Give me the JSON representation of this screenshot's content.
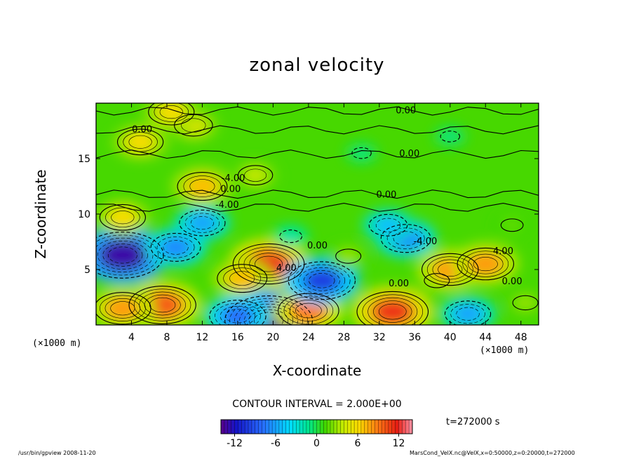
{
  "chart_data": {
    "type": "heatmap",
    "title": "zonal velocity",
    "xlabel": "X-coordinate",
    "ylabel": "Z-coordinate",
    "x_unit": "(×1000 m)",
    "y_unit": "(×1000 m)",
    "xlim": [
      0,
      50
    ],
    "ylim": [
      0,
      20
    ],
    "x_ticks": [
      4,
      8,
      12,
      16,
      20,
      24,
      28,
      32,
      36,
      40,
      44,
      48
    ],
    "y_ticks": [
      5,
      10,
      15
    ],
    "contour_interval_text": "CONTOUR INTERVAL = 2.000E+00",
    "contour_labels": [
      {
        "text": "0.00",
        "x": 35.0,
        "z": 19.4
      },
      {
        "text": "0.00",
        "x": 5.2,
        "z": 17.7
      },
      {
        "text": "0.00",
        "x": 35.4,
        "z": 15.5
      },
      {
        "text": "-4.00",
        "x": 15.5,
        "z": 13.3
      },
      {
        "text": "0.00",
        "x": 15.2,
        "z": 12.3
      },
      {
        "text": "0.00",
        "x": 32.8,
        "z": 11.8
      },
      {
        "text": "-4.00",
        "x": 14.8,
        "z": 10.9
      },
      {
        "text": "-4.00",
        "x": 37.2,
        "z": 7.6
      },
      {
        "text": "0.00",
        "x": 25.0,
        "z": 7.2
      },
      {
        "text": "4.00",
        "x": 21.5,
        "z": 5.2
      },
      {
        "text": "0.00",
        "x": 34.2,
        "z": 3.8
      },
      {
        "text": "4.00",
        "x": 46.0,
        "z": 6.7
      },
      {
        "text": "0.00",
        "x": 47.0,
        "z": 4.0
      }
    ],
    "features": [
      {
        "x": 3.0,
        "z": 6.3,
        "value": -13
      },
      {
        "x": 9.0,
        "z": 7.0,
        "value": -7
      },
      {
        "x": 12.0,
        "z": 9.2,
        "value": -6
      },
      {
        "x": 19.5,
        "z": 5.5,
        "value": 11
      },
      {
        "x": 16.5,
        "z": 4.2,
        "value": 7
      },
      {
        "x": 7.5,
        "z": 1.8,
        "value": 10
      },
      {
        "x": 3.0,
        "z": 1.5,
        "value": 8
      },
      {
        "x": 19.5,
        "z": 0.4,
        "value": -14
      },
      {
        "x": 16.0,
        "z": 0.8,
        "value": -8
      },
      {
        "x": 24.0,
        "z": 1.3,
        "value": 9
      },
      {
        "x": 33.5,
        "z": 1.2,
        "value": 11
      },
      {
        "x": 42.0,
        "z": 1.0,
        "value": -6
      },
      {
        "x": 38.5,
        "z": 4.0,
        "value": 3
      },
      {
        "x": 40.0,
        "z": 5.0,
        "value": 8
      },
      {
        "x": 44.0,
        "z": 5.5,
        "value": 8
      },
      {
        "x": 25.5,
        "z": 4.0,
        "value": -10
      },
      {
        "x": 35.0,
        "z": 7.8,
        "value": -7
      },
      {
        "x": 33.0,
        "z": 9.0,
        "value": -5
      },
      {
        "x": 12.0,
        "z": 12.5,
        "value": 7
      },
      {
        "x": 18.0,
        "z": 13.5,
        "value": 4
      },
      {
        "x": 5.0,
        "z": 16.5,
        "value": 6
      },
      {
        "x": 11.0,
        "z": 18.0,
        "value": 5
      },
      {
        "x": 8.5,
        "z": 19.2,
        "value": 6
      },
      {
        "x": 3.0,
        "z": 9.7,
        "value": 6
      },
      {
        "x": 28.5,
        "z": 6.2,
        "value": 3
      },
      {
        "x": 22.0,
        "z": 8.0,
        "value": -2
      },
      {
        "x": 47.0,
        "z": 9.0,
        "value": 2
      },
      {
        "x": 30.0,
        "z": 15.5,
        "value": -1
      },
      {
        "x": 40.0,
        "z": 17.0,
        "value": -1
      },
      {
        "x": 48.5,
        "z": 2.0,
        "value": 3
      }
    ],
    "colorbar": {
      "ticks": [
        -12,
        -6,
        0,
        6,
        12
      ],
      "range": [
        -14,
        14
      ]
    },
    "grid": false
  },
  "labels": {
    "title": "zonal velocity",
    "xlabel": "X-coordinate",
    "ylabel": "Z-coordinate",
    "x_unit": "(×1000 m)",
    "y_unit": "(×1000 m)",
    "contour_note": "CONTOUR INTERVAL = 2.000E+00",
    "time": "t=272000 s",
    "footer_left": "/usr/bin/gpview  2008-11-20",
    "footer_right": "MarsCond_VelX.nc@VelX,x=0:50000,z=0:20000,t=272000"
  }
}
